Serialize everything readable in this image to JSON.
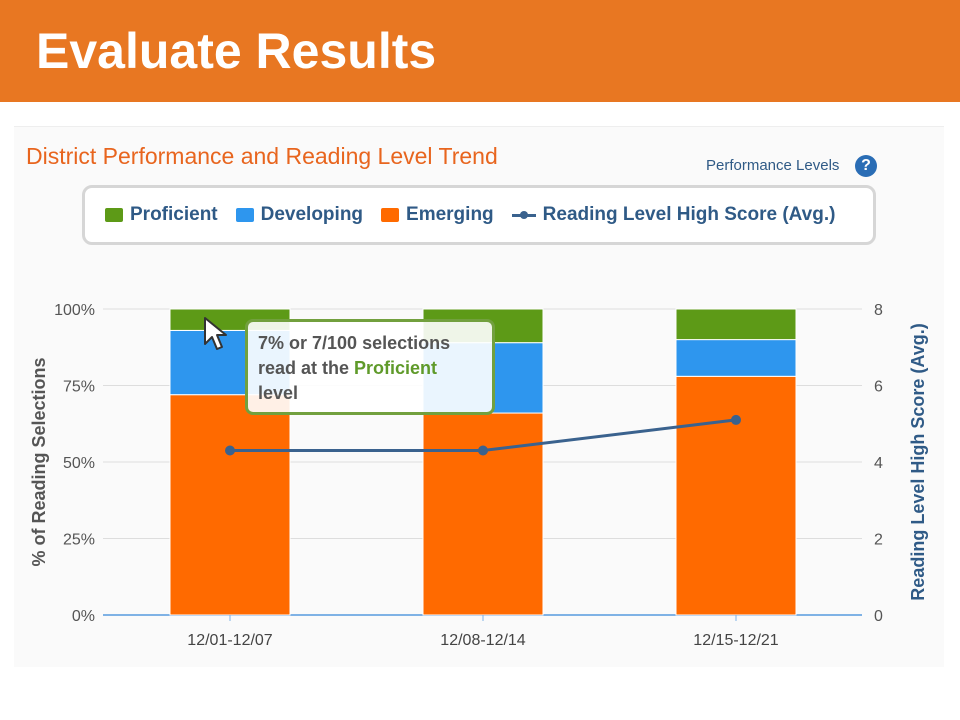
{
  "header": {
    "title": "Evaluate Results"
  },
  "panel": {
    "chart_title": "District Performance and Reading Level Trend",
    "performance_levels_link": "Performance Levels",
    "help_icon": "?"
  },
  "legend": {
    "items": [
      {
        "label": "Proficient",
        "color": "#5d9a17"
      },
      {
        "label": "Developing",
        "color": "#2e96ee"
      },
      {
        "label": "Emerging",
        "color": "#ff6a00"
      },
      {
        "label": "Reading Level High Score (Avg.)",
        "color": "#3a628e"
      }
    ]
  },
  "tooltip": {
    "line1": "7% or 7/100 selections",
    "line2_prefix": "read at the ",
    "line2_highlight": "Proficient",
    "line3": "level"
  },
  "chart_data": {
    "type": "bar",
    "stacked": true,
    "categories": [
      "12/01-12/07",
      "12/08-12/14",
      "12/15-12/21"
    ],
    "series": [
      {
        "name": "Emerging",
        "color": "#ff6a00",
        "values": [
          72,
          66,
          78
        ]
      },
      {
        "name": "Developing",
        "color": "#2e96ee",
        "values": [
          21,
          23,
          12
        ]
      },
      {
        "name": "Proficient",
        "color": "#5d9a17",
        "values": [
          7,
          11,
          10
        ]
      }
    ],
    "line_series": {
      "name": "Reading Level High Score (Avg.)",
      "color": "#3a628e",
      "values": [
        4.3,
        4.3,
        5.1
      ]
    },
    "ylabel": "% of Reading Selections",
    "y2label": "Reading Level High Score (Avg.)",
    "ylim": [
      0,
      100
    ],
    "y2lim": [
      0,
      8
    ],
    "yticks": [
      "0%",
      "25%",
      "50%",
      "75%",
      "100%"
    ],
    "y2ticks": [
      "0",
      "2",
      "4",
      "6",
      "8"
    ]
  }
}
